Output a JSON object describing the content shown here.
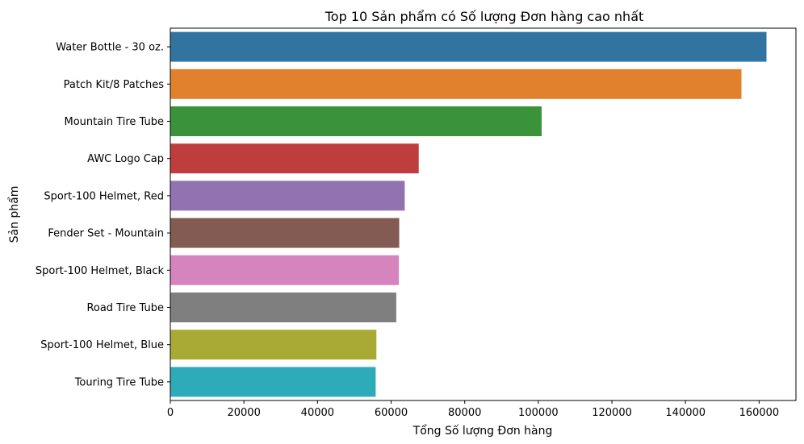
{
  "chart_data": {
    "type": "bar",
    "orientation": "horizontal",
    "title": "Top 10 Sản phẩm có Số lượng Đơn hàng cao nhất",
    "xlabel": "Tổng Số lượng Đơn hàng",
    "ylabel": "Sản phẩm",
    "xlim": [
      0,
      170000
    ],
    "xticks": [
      0,
      20000,
      40000,
      60000,
      80000,
      100000,
      120000,
      140000,
      160000
    ],
    "grid": false,
    "categories": [
      "Water Bottle - 30 oz.",
      "Patch Kit/8 Patches",
      "Mountain Tire Tube",
      "AWC Logo Cap",
      "Sport-100 Helmet, Red",
      "Fender Set - Mountain",
      "Sport-100 Helmet, Black",
      "Road Tire Tube",
      "Sport-100 Helmet, Blue",
      "Touring Tire Tube"
    ],
    "values": [
      162000,
      155200,
      100900,
      67500,
      63700,
      62200,
      62100,
      61400,
      56000,
      55800
    ],
    "colors": [
      "#3274a1",
      "#e1812c",
      "#3a923a",
      "#c03d3e",
      "#9372b2",
      "#845b53",
      "#d684bd",
      "#7f7f7f",
      "#a9aa35",
      "#2eabb8"
    ]
  }
}
